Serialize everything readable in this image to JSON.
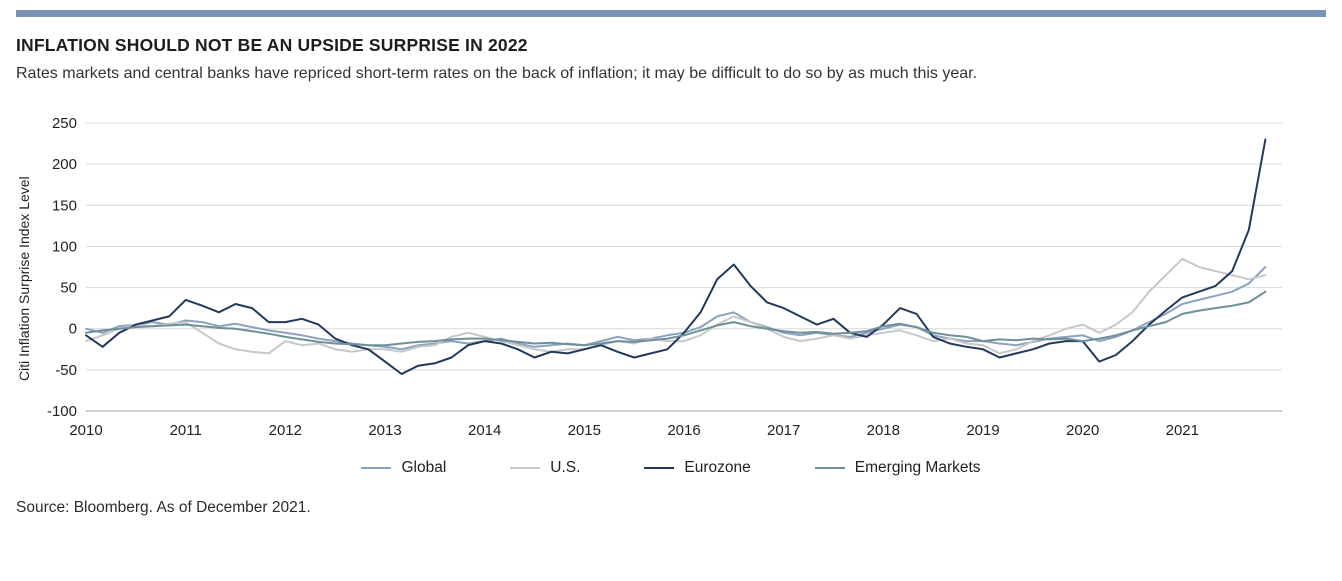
{
  "page": {
    "title": "INFLATION SHOULD NOT BE AN UPSIDE SURPRISE IN 2022",
    "subtitle": "Rates markets and central banks have repriced short-term rates on the back of inflation; it may be difficult to do so by as much this year.",
    "source": "Source: Bloomberg. As of December 2021.",
    "accent_bar_color": "#7a93b6"
  },
  "chart_data": {
    "type": "line",
    "title": "",
    "xlabel": "",
    "ylabel": "Citi Inflation Surprise Index Level",
    "ylim": [
      -100,
      250
    ],
    "yticks": [
      250,
      200,
      150,
      100,
      50,
      0,
      -50,
      -100
    ],
    "xlim": [
      2010,
      2022.0
    ],
    "xticks": [
      2010,
      2011,
      2012,
      2013,
      2014,
      2015,
      2016,
      2017,
      2018,
      2019,
      2020,
      2021
    ],
    "x_start": 2010,
    "x_step": 0.16667,
    "grid": "horizontal",
    "legend_position": "bottom",
    "series": [
      {
        "name": "Global",
        "color": "#8ba3bf",
        "values": [
          0,
          -5,
          3,
          5,
          8,
          5,
          10,
          8,
          3,
          6,
          2,
          -2,
          -5,
          -8,
          -12,
          -15,
          -18,
          -20,
          -22,
          -25,
          -20,
          -18,
          -15,
          -18,
          -15,
          -12,
          -18,
          -22,
          -20,
          -18,
          -20,
          -15,
          -10,
          -14,
          -12,
          -8,
          -5,
          2,
          15,
          20,
          8,
          2,
          -5,
          -8,
          -5,
          -8,
          -10,
          -5,
          0,
          5,
          2,
          -8,
          -12,
          -15,
          -15,
          -18,
          -20,
          -16,
          -12,
          -10,
          -8,
          -15,
          -10,
          -2,
          8,
          18,
          30,
          35,
          40,
          45,
          55,
          75
        ]
      },
      {
        "name": "U.S.",
        "color": "#c7c8ca",
        "values": [
          -15,
          -8,
          0,
          5,
          3,
          6,
          8,
          -5,
          -18,
          -25,
          -28,
          -30,
          -15,
          -20,
          -18,
          -25,
          -28,
          -25,
          -25,
          -28,
          -22,
          -20,
          -10,
          -5,
          -10,
          -15,
          -20,
          -25,
          -28,
          -25,
          -25,
          -20,
          -15,
          -18,
          -12,
          -15,
          -15,
          -8,
          5,
          15,
          8,
          0,
          -10,
          -15,
          -12,
          -8,
          -12,
          -8,
          -5,
          -2,
          -8,
          -15,
          -12,
          -18,
          -20,
          -30,
          -25,
          -15,
          -8,
          0,
          5,
          -5,
          5,
          20,
          45,
          65,
          85,
          75,
          70,
          65,
          60,
          65
        ]
      },
      {
        "name": "Eurozone",
        "color": "#22395c",
        "values": [
          -8,
          -22,
          -5,
          5,
          10,
          15,
          35,
          28,
          20,
          30,
          25,
          8,
          8,
          12,
          5,
          -12,
          -20,
          -25,
          -40,
          -55,
          -45,
          -42,
          -35,
          -20,
          -15,
          -18,
          -25,
          -35,
          -28,
          -30,
          -25,
          -20,
          -28,
          -35,
          -30,
          -25,
          -5,
          20,
          60,
          78,
          52,
          32,
          25,
          15,
          5,
          12,
          -5,
          -10,
          5,
          25,
          18,
          -10,
          -18,
          -22,
          -25,
          -35,
          -30,
          -25,
          -18,
          -15,
          -15,
          -40,
          -32,
          -15,
          5,
          22,
          38,
          45,
          52,
          70,
          120,
          230
        ]
      },
      {
        "name": "Emerging Markets",
        "color": "#6f8f99",
        "values": [
          -5,
          -2,
          0,
          2,
          3,
          4,
          5,
          3,
          1,
          0,
          -3,
          -6,
          -10,
          -13,
          -16,
          -18,
          -19,
          -20,
          -20,
          -18,
          -16,
          -15,
          -13,
          -12,
          -12,
          -14,
          -16,
          -18,
          -17,
          -19,
          -20,
          -18,
          -15,
          -16,
          -14,
          -12,
          -8,
          -2,
          4,
          8,
          3,
          0,
          -3,
          -5,
          -4,
          -6,
          -5,
          -3,
          3,
          6,
          2,
          -5,
          -8,
          -10,
          -15,
          -13,
          -14,
          -12,
          -13,
          -12,
          -15,
          -12,
          -8,
          -2,
          3,
          8,
          18,
          22,
          25,
          28,
          32,
          45
        ]
      }
    ]
  }
}
